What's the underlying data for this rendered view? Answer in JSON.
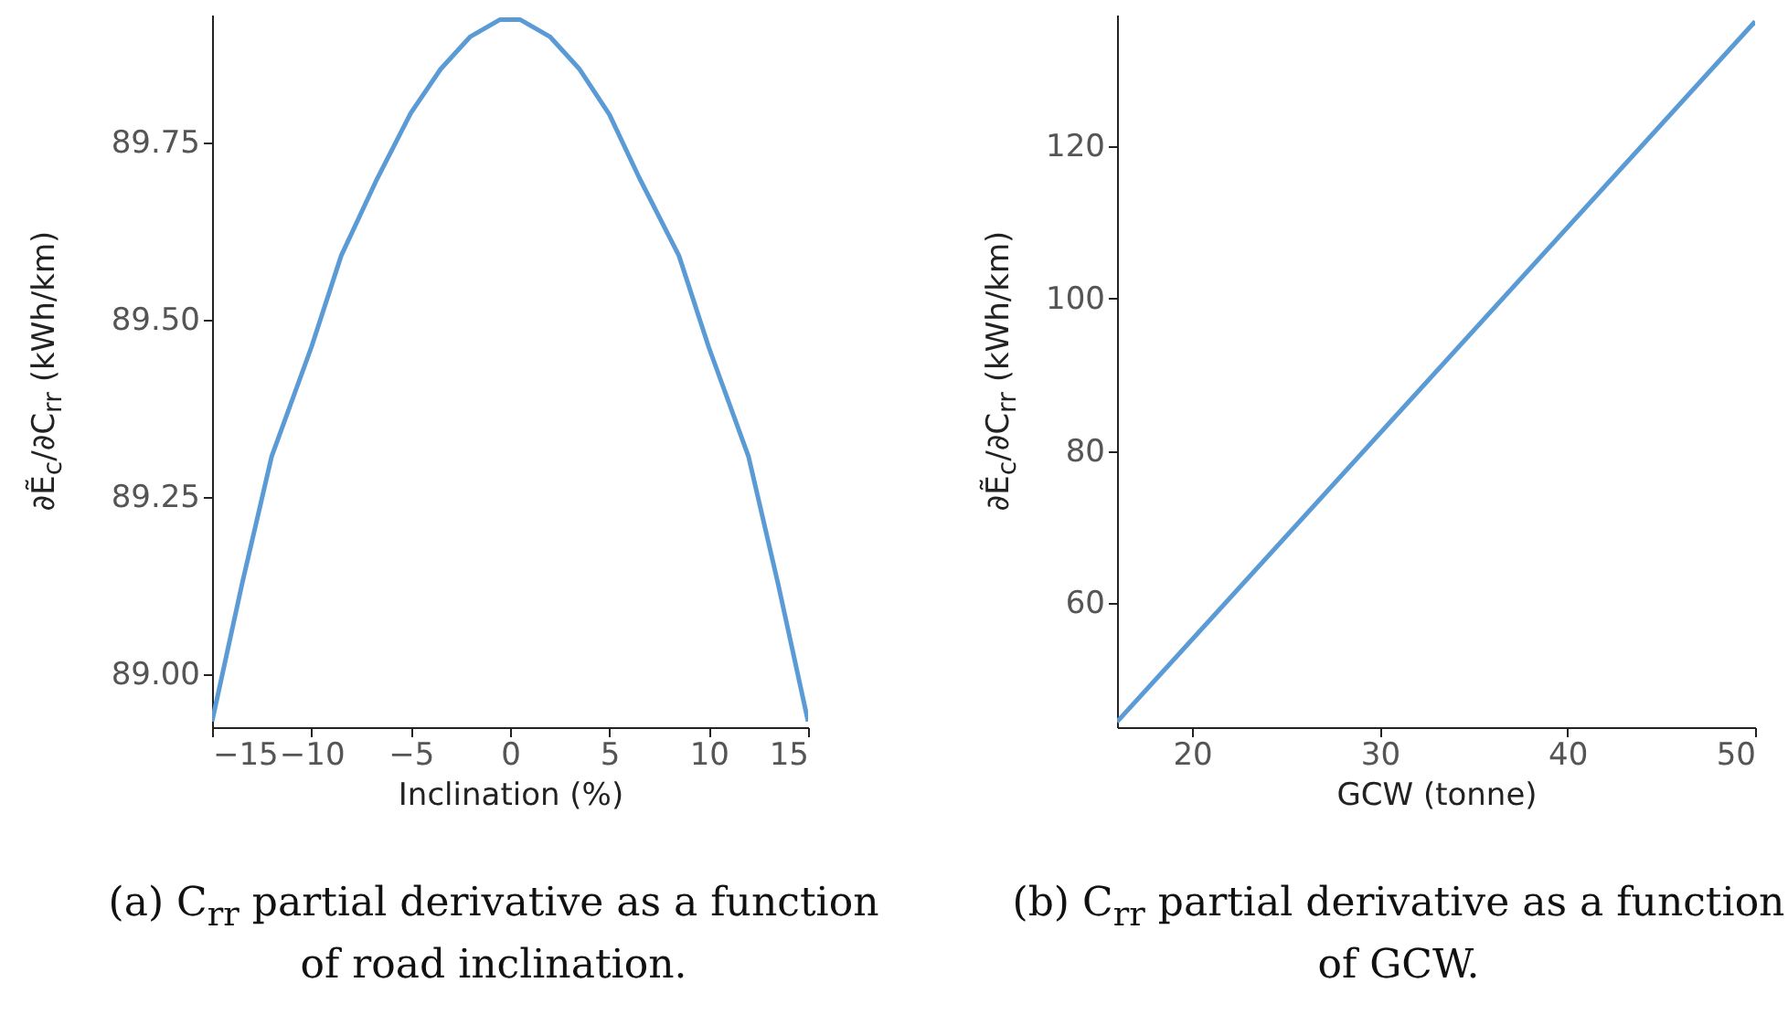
{
  "chart_data": [
    {
      "type": "line",
      "xlabel": "Inclination (%)",
      "ylabel": "∂Ẽ$_{c}$/∂C$_{rr}$ (kWh/km)",
      "annotations": [
        "(a) C$_{rr}$ partial derivative as a function of road inclination."
      ],
      "xlim": [
        -15,
        15
      ],
      "xticks": [
        -15,
        -10,
        -5,
        0,
        5,
        10,
        15
      ],
      "ylim": [
        88.925,
        89.93
      ],
      "yticks": [
        {
          "value": 89,
          "label": "89.00"
        },
        {
          "value": 89.25,
          "label": "89.25"
        },
        {
          "value": 89.5,
          "label": "89.50"
        },
        {
          "value": 89.75,
          "label": "89.75"
        }
      ],
      "series": [
        {
          "color": "#5b9bd5",
          "x": [
            -15,
            -13.5,
            -12,
            -10,
            -8.5,
            -6.7,
            -5,
            -3.5,
            -2,
            -0.5,
            0.5,
            2,
            3.5,
            5,
            6.5,
            8.5,
            10,
            12,
            13.5,
            15
          ],
          "values": [
            88.933,
            89.126,
            89.307,
            89.461,
            89.59,
            89.698,
            89.791,
            89.853,
            89.899,
            89.923,
            89.923,
            89.899,
            89.853,
            89.789,
            89.7,
            89.59,
            89.461,
            89.307,
            89.126,
            88.933
          ]
        }
      ]
    },
    {
      "type": "line",
      "xlabel": "GCW (tonne)",
      "ylabel": "∂Ẽ$_{c}$/∂C$_{rr}$ (kWh/km)",
      "annotations": [
        "(b) C$_{rr}$ partial derivative as a function of GCW."
      ],
      "xlim": [
        16,
        50
      ],
      "xticks": [
        20,
        30,
        40,
        50
      ],
      "ylim": [
        43.7,
        137.3
      ],
      "yticks": [
        60,
        80,
        100,
        120
      ],
      "series": [
        {
          "color": "#5b9bd5",
          "x": [
            16,
            50
          ],
          "values": [
            44.4,
            136.4
          ]
        }
      ]
    }
  ]
}
